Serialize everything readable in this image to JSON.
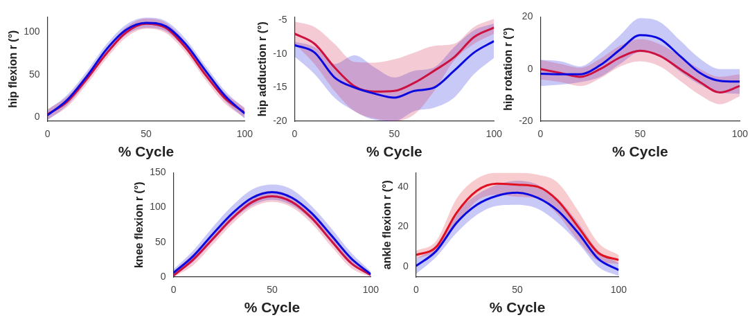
{
  "chart_data": [
    {
      "type": "line",
      "xlabel": "% Cycle",
      "ylabel": "hip flexion r (°)",
      "x": [
        0,
        10,
        20,
        30,
        40,
        50,
        60,
        70,
        80,
        90,
        100
      ],
      "xlim": [
        0,
        100
      ],
      "xticks": [
        0,
        50,
        100
      ],
      "ylim": [
        -5,
        118
      ],
      "yticks": [
        0,
        50,
        100
      ],
      "grid": false,
      "marker": "none",
      "series": [
        {
          "color": "#cc1040",
          "values": [
            3,
            18,
            45,
            75,
            100,
            110,
            105,
            82,
            50,
            22,
            5
          ],
          "lower": [
            -3,
            12,
            39,
            69,
            94,
            104,
            99,
            76,
            44,
            16,
            -1
          ],
          "upper": [
            9,
            24,
            51,
            81,
            106,
            116,
            111,
            88,
            56,
            28,
            11
          ]
        },
        {
          "color": "#0a0ae0",
          "values": [
            2,
            20,
            48,
            80,
            103,
            111,
            107,
            86,
            55,
            25,
            4
          ],
          "lower": [
            -4,
            14,
            42,
            74,
            97,
            105,
            101,
            80,
            49,
            19,
            -2
          ],
          "upper": [
            8,
            26,
            54,
            86,
            109,
            117,
            113,
            92,
            61,
            31,
            10
          ]
        }
      ]
    },
    {
      "type": "line",
      "xlabel": "% Cycle",
      "ylabel": "hip adduction r (°)",
      "x": [
        0,
        10,
        20,
        30,
        40,
        50,
        60,
        70,
        80,
        90,
        100
      ],
      "xlim": [
        0,
        100
      ],
      "xticks": [
        0,
        50,
        100
      ],
      "ylim": [
        -20,
        -4.5
      ],
      "yticks": [
        -20,
        -15,
        -10,
        -5
      ],
      "grid": false,
      "marker": "none",
      "series": [
        {
          "color": "#cc1040",
          "values": [
            -7,
            -8.5,
            -12,
            -14.8,
            -15.6,
            -15.5,
            -14.3,
            -12.5,
            -10.5,
            -7.5,
            -6.1
          ],
          "lower": [
            -8.5,
            -11.5,
            -15.5,
            -18.5,
            -19.6,
            -20,
            -19,
            -15.5,
            -11,
            -8.5,
            -7
          ],
          "upper": [
            -5.2,
            -6,
            -8.5,
            -11.2,
            -11.3,
            -10.8,
            -9.8,
            -8.8,
            -8.5,
            -6,
            -4.8
          ]
        },
        {
          "color": "#0a0ae0",
          "values": [
            -8.7,
            -9.8,
            -13.5,
            -15,
            -15.9,
            -16.5,
            -15.5,
            -15,
            -12.5,
            -9.8,
            -8.1
          ],
          "lower": [
            -10.4,
            -13,
            -16.5,
            -18.5,
            -19.8,
            -20,
            -18.5,
            -18,
            -16.5,
            -13,
            -10.6
          ],
          "upper": [
            -8.2,
            -9,
            -11.5,
            -10.2,
            -12,
            -13.5,
            -12.5,
            -12,
            -9,
            -6.5,
            -5.5
          ]
        }
      ]
    },
    {
      "type": "line",
      "xlabel": "% Cycle",
      "ylabel": "hip rotation r (°)",
      "x": [
        0,
        10,
        20,
        30,
        40,
        50,
        60,
        70,
        80,
        90,
        100
      ],
      "xlim": [
        0,
        100
      ],
      "xticks": [
        0,
        50,
        100
      ],
      "ylim": [
        -20,
        20
      ],
      "yticks": [
        -20,
        0,
        20
      ],
      "grid": false,
      "marker": "none",
      "series": [
        {
          "color": "#cc1040",
          "values": [
            0,
            -1.5,
            -3,
            0,
            4.5,
            7,
            5,
            0,
            -5,
            -9,
            -6.5
          ],
          "lower": [
            -4,
            -5,
            -6.5,
            -3.5,
            1,
            3,
            1,
            -4.5,
            -10,
            -13.5,
            -10.5
          ],
          "upper": [
            3.5,
            2,
            0.5,
            4,
            9,
            11.5,
            9.5,
            5,
            0,
            -3,
            -2
          ]
        },
        {
          "color": "#0a0ae0",
          "values": [
            -1.8,
            -2,
            -2,
            1.5,
            7.5,
            13,
            11.5,
            5,
            -1.5,
            -4.5,
            -4.8
          ],
          "lower": [
            -6.5,
            -6,
            -5,
            -3,
            2,
            6.5,
            5,
            -1,
            -6,
            -9,
            -9.5
          ],
          "upper": [
            3.5,
            3,
            1,
            6,
            13,
            19.5,
            18,
            11,
            4,
            0,
            0
          ]
        }
      ]
    },
    {
      "type": "line",
      "xlabel": "% Cycle",
      "ylabel": "knee flexion r (°)",
      "x": [
        0,
        10,
        20,
        30,
        40,
        50,
        60,
        70,
        80,
        90,
        100
      ],
      "xlim": [
        0,
        100
      ],
      "xticks": [
        0,
        50,
        100
      ],
      "ylim": [
        0,
        150
      ],
      "yticks": [
        0,
        50,
        100,
        150
      ],
      "grid": false,
      "marker": "none",
      "series": [
        {
          "color": "#cc1040",
          "values": [
            2,
            25,
            55,
            85,
            108,
            116,
            108,
            85,
            52,
            20,
            3
          ],
          "lower": [
            0,
            17,
            47,
            77,
            100,
            108,
            100,
            77,
            44,
            13,
            0
          ],
          "upper": [
            8,
            33,
            63,
            93,
            116,
            124,
            116,
            93,
            60,
            27,
            6
          ]
        },
        {
          "color": "#0a0ae0",
          "values": [
            6,
            30,
            62,
            92,
            114,
            122,
            114,
            92,
            60,
            27,
            4
          ],
          "lower": [
            2,
            22,
            52,
            82,
            103,
            111,
            103,
            82,
            50,
            19,
            1
          ],
          "upper": [
            11,
            38,
            72,
            103,
            126,
            133,
            126,
            102,
            70,
            35,
            8
          ]
        }
      ]
    },
    {
      "type": "line",
      "xlabel": "% Cycle",
      "ylabel": "ankle flexion r (°)",
      "x": [
        0,
        10,
        20,
        30,
        40,
        50,
        60,
        70,
        80,
        90,
        100
      ],
      "xlim": [
        0,
        100
      ],
      "xticks": [
        0,
        50,
        100
      ],
      "ylim": [
        -5,
        47
      ],
      "yticks": [
        0,
        20,
        40
      ],
      "grid": false,
      "marker": "none",
      "series": [
        {
          "color": "#e01020",
          "values": [
            6,
            10,
            27,
            38,
            41.5,
            41,
            40,
            33,
            20,
            7,
            3.5
          ],
          "lower": [
            4,
            8,
            21,
            33,
            36,
            35,
            34,
            26,
            13,
            3,
            1.5
          ],
          "upper": [
            8,
            13,
            34,
            44,
            47,
            47,
            46,
            42,
            28,
            12,
            6
          ]
        },
        {
          "color": "#0a0ae0",
          "values": [
            0.5,
            8,
            22,
            31,
            35.5,
            37,
            34.5,
            28,
            17,
            4,
            -1.5
          ],
          "lower": [
            -3.5,
            5,
            17,
            26,
            30.5,
            31,
            29,
            22,
            12,
            0,
            -4.5
          ],
          "upper": [
            4,
            11,
            27,
            36,
            41,
            43,
            41,
            34,
            22,
            8,
            2
          ]
        }
      ]
    }
  ]
}
